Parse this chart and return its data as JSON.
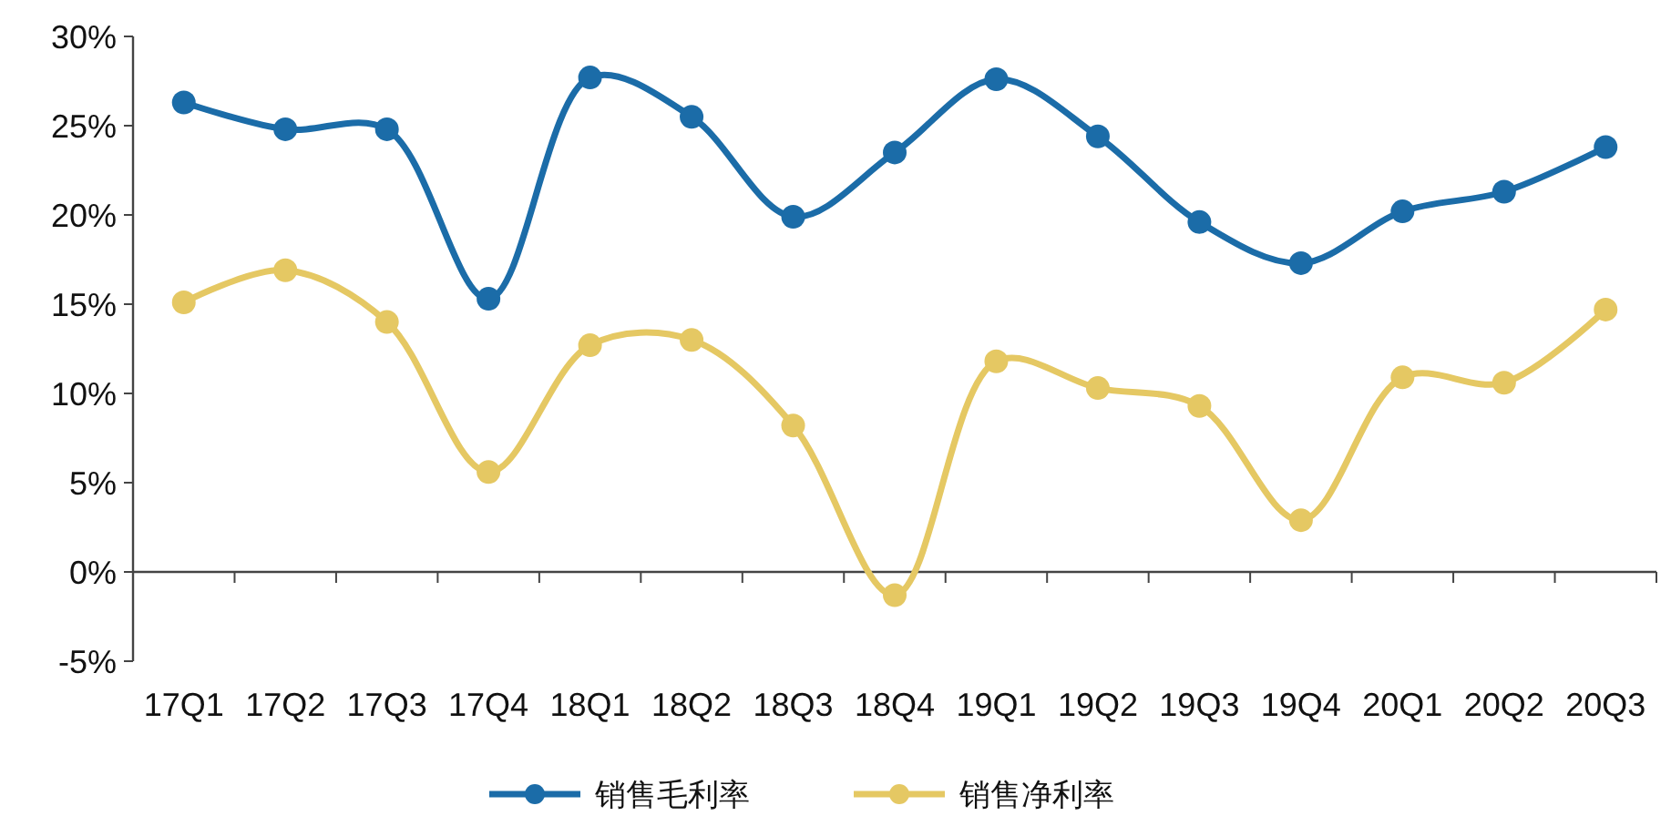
{
  "chart_data": {
    "type": "line",
    "categories": [
      "17Q1",
      "17Q2",
      "17Q3",
      "17Q4",
      "18Q1",
      "18Q2",
      "18Q3",
      "18Q4",
      "19Q1",
      "19Q2",
      "19Q3",
      "19Q4",
      "20Q1",
      "20Q2",
      "20Q3"
    ],
    "series": [
      {
        "name": "销售毛利率",
        "color": "#1b6ca8",
        "values": [
          26.3,
          24.8,
          24.8,
          15.3,
          27.7,
          25.5,
          19.9,
          23.5,
          27.6,
          24.4,
          19.6,
          17.3,
          20.2,
          21.3,
          23.8
        ]
      },
      {
        "name": "销售净利率",
        "color": "#e5c863",
        "values": [
          15.1,
          16.9,
          14.0,
          5.6,
          12.7,
          13.0,
          8.2,
          -1.3,
          11.8,
          10.3,
          9.3,
          2.9,
          10.9,
          10.6,
          14.7
        ]
      }
    ],
    "ylim": [
      -5,
      30
    ],
    "yticks": [
      {
        "value": -5,
        "label": "-5%"
      },
      {
        "value": 0,
        "label": "0%"
      },
      {
        "value": 5,
        "label": "5%"
      },
      {
        "value": 10,
        "label": "10%"
      },
      {
        "value": 15,
        "label": "15%"
      },
      {
        "value": 20,
        "label": "20%"
      },
      {
        "value": 25,
        "label": "25%"
      },
      {
        "value": 30,
        "label": "30%"
      }
    ],
    "marker": "circle",
    "line_style": "solid",
    "legend": "bottom"
  }
}
